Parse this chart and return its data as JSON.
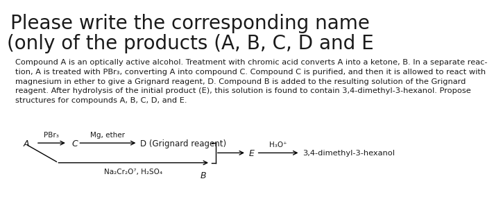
{
  "title_line1": "Please write the corresponding name",
  "title_line2": "(only of the products (A, B, C, D and E",
  "title_fontsize": 20,
  "body_text": "Compound A is an optically active alcohol. Treatment with chromic acid converts A into a ketone, B. In a separate reac-\ntion, A is treated with PBr₃, converting A into compound C. Compound C is purified, and then it is allowed to react with\nmagnesium in ether to give a Grignard reagent, D. Compound B is added to the resulting solution of the Grignard\nreagent. After hydrolysis of the initial product (E), this solution is found to contain 3,4-dimethyl-3-hexanol. Propose\nstructures for compounds A, B, C, D, and E.",
  "body_fontsize": 8.2,
  "bg_color": "#ffffff",
  "text_color": "#1a1a1a",
  "diagram": {
    "A_label": "A",
    "C_label": "C",
    "D_label": "D (Grignard reagent)",
    "E_label": "E",
    "B_label": "B",
    "product_label": "3,4-dimethyl-3-hexanol",
    "arrow1_label": "PBr₃",
    "arrow2_label": "Mg, ether",
    "arrow3_label": "H₃O⁺",
    "arrow4_label": "Na₂Cr₂O⁷, H₂SO₄"
  }
}
